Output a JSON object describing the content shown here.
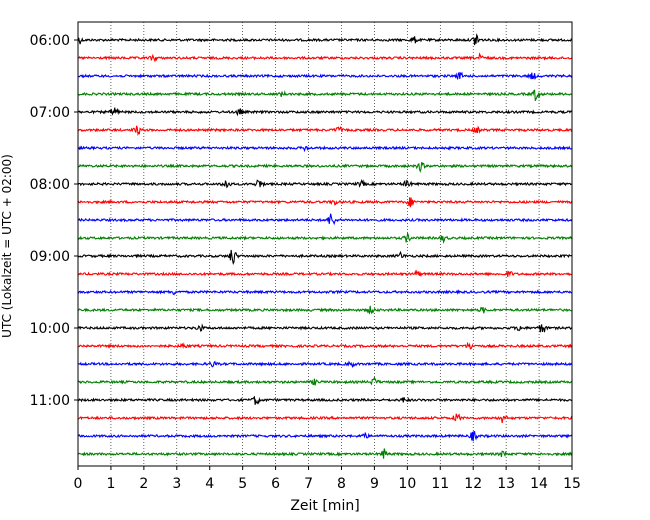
{
  "chart_data": {
    "type": "line",
    "subtype": "helicorder",
    "title": "",
    "xlabel": "Zeit  [min]",
    "ylabel": "UTC (Lokalzeit = UTC + 02:00)",
    "xlim": [
      0,
      15
    ],
    "x_ticks": [
      "0",
      "1",
      "2",
      "3",
      "4",
      "5",
      "6",
      "7",
      "8",
      "9",
      "10",
      "11",
      "12",
      "13",
      "14",
      "15"
    ],
    "y_tick_labels": [
      "06:00",
      "07:00",
      "08:00",
      "09:00",
      "10:00",
      "11:00"
    ],
    "grid": "vertical dotted at each minute",
    "row_interval_minutes": 15,
    "colors": [
      "#000000",
      "#ff0000",
      "#0000ff",
      "#008000"
    ],
    "traces": [
      {
        "start": "06:00",
        "events": [
          [
            0.0,
            1.0
          ],
          [
            12.1,
            1.6
          ],
          [
            10.2,
            0.6
          ]
        ]
      },
      {
        "start": "06:15",
        "events": [
          [
            2.3,
            0.7
          ],
          [
            12.2,
            0.6
          ]
        ]
      },
      {
        "start": "06:30",
        "events": [
          [
            11.6,
            0.6
          ],
          [
            13.8,
            0.6
          ]
        ]
      },
      {
        "start": "06:45",
        "events": [
          [
            13.9,
            1.2
          ],
          [
            6.2,
            0.4
          ]
        ]
      },
      {
        "start": "07:00",
        "events": [
          [
            1.1,
            1.1
          ],
          [
            4.9,
            0.6
          ]
        ]
      },
      {
        "start": "07:15",
        "events": [
          [
            1.8,
            0.8
          ],
          [
            7.9,
            0.6
          ],
          [
            12.1,
            0.5
          ]
        ]
      },
      {
        "start": "07:30",
        "events": [
          [
            6.9,
            0.4
          ]
        ]
      },
      {
        "start": "07:45",
        "events": [
          [
            10.4,
            0.9
          ]
        ]
      },
      {
        "start": "08:00",
        "events": [
          [
            4.5,
            1.1
          ],
          [
            5.5,
            1.0
          ],
          [
            8.6,
            0.5
          ],
          [
            10.0,
            0.7
          ]
        ]
      },
      {
        "start": "08:15",
        "events": [
          [
            10.1,
            0.9
          ],
          [
            7.8,
            0.5
          ]
        ]
      },
      {
        "start": "08:30",
        "events": [
          [
            7.7,
            1.5
          ]
        ]
      },
      {
        "start": "08:45",
        "events": [
          [
            10.0,
            0.8
          ],
          [
            11.1,
            0.6
          ]
        ]
      },
      {
        "start": "09:00",
        "events": [
          [
            4.7,
            1.7
          ],
          [
            9.8,
            0.6
          ]
        ]
      },
      {
        "start": "09:15",
        "events": [
          [
            10.3,
            0.5
          ],
          [
            13.1,
            0.5
          ]
        ]
      },
      {
        "start": "09:30",
        "events": [
          [
            2.9,
            0.4
          ]
        ]
      },
      {
        "start": "09:45",
        "events": [
          [
            8.9,
            0.7
          ],
          [
            12.3,
            0.5
          ]
        ]
      },
      {
        "start": "10:00",
        "events": [
          [
            14.1,
            1.1
          ],
          [
            3.7,
            0.6
          ],
          [
            13.4,
            0.5
          ]
        ]
      },
      {
        "start": "10:15",
        "events": [
          [
            11.9,
            0.7
          ],
          [
            3.2,
            0.4
          ]
        ]
      },
      {
        "start": "10:30",
        "events": [
          [
            4.1,
            0.5
          ],
          [
            8.3,
            0.5
          ]
        ]
      },
      {
        "start": "10:45",
        "events": [
          [
            9.0,
            0.8
          ],
          [
            7.2,
            0.5
          ]
        ]
      },
      {
        "start": "11:00",
        "events": [
          [
            5.4,
            0.9
          ],
          [
            9.9,
            0.5
          ]
        ]
      },
      {
        "start": "11:15",
        "events": [
          [
            11.5,
            0.9
          ],
          [
            12.9,
            0.9
          ]
        ]
      },
      {
        "start": "11:30",
        "events": [
          [
            12.0,
            0.9
          ],
          [
            8.7,
            0.5
          ]
        ]
      },
      {
        "start": "11:45",
        "events": [
          [
            9.3,
            0.9
          ],
          [
            12.9,
            0.5
          ]
        ]
      }
    ]
  }
}
